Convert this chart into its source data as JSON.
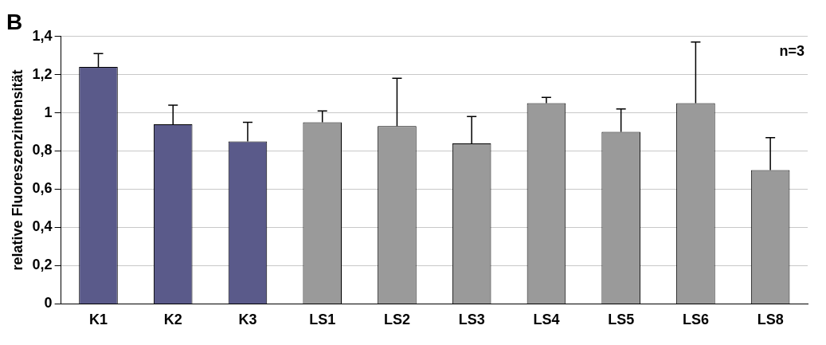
{
  "chart_data": {
    "type": "bar",
    "title": "B",
    "ylabel": "relative Fluoreszenzintensität",
    "categories": [
      "K1",
      "K2",
      "K3",
      "LS1",
      "LS2",
      "LS3",
      "LS4",
      "LS5",
      "LS6",
      "LS8"
    ],
    "values": [
      1.24,
      0.94,
      0.85,
      0.95,
      0.93,
      0.84,
      1.05,
      0.9,
      1.05,
      0.7
    ],
    "errors": [
      [
        1.24,
        1.31
      ],
      [
        0.94,
        1.04
      ],
      [
        0.85,
        0.95
      ],
      [
        0.95,
        1.01
      ],
      [
        0.93,
        1.18
      ],
      [
        0.84,
        0.98
      ],
      [
        1.05,
        1.08
      ],
      [
        0.9,
        1.02
      ],
      [
        1.05,
        1.37
      ],
      [
        0.7,
        0.87
      ]
    ],
    "colors": [
      "#5a5a8a",
      "#5a5a8a",
      "#5a5a8a",
      "#9a9a9a",
      "#9a9a9a",
      "#9a9a9a",
      "#9a9a9a",
      "#9a9a9a",
      "#9a9a9a",
      "#9a9a9a"
    ],
    "ylim": [
      0,
      1.4
    ],
    "yticks": [
      0,
      {
        "value": 0.2,
        "label": "0,2"
      },
      {
        "value": 0.4,
        "label": "0,4"
      },
      {
        "value": 0.6,
        "label": "0,6"
      },
      {
        "value": 0.8,
        "label": "0,8"
      },
      1,
      {
        "value": 1.2,
        "label": "1,2"
      },
      {
        "value": 1.4,
        "label": "1,4"
      }
    ],
    "grid": "y",
    "legend": false,
    "annotations": [
      "n=3"
    ]
  }
}
